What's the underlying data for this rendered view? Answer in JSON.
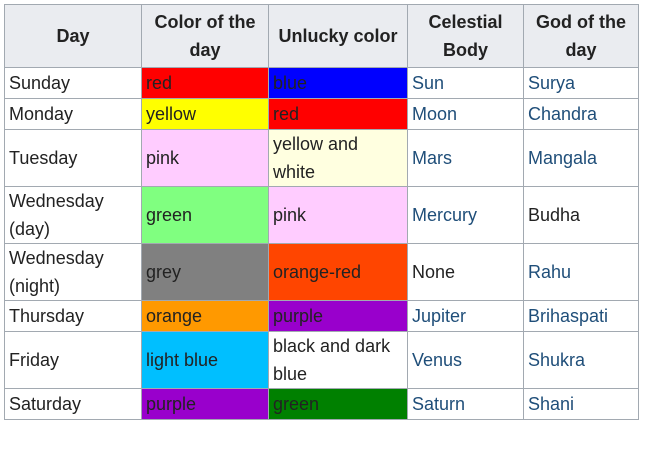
{
  "headers": [
    "Day",
    "Color of the day",
    "Unlucky color",
    "Celestial Body",
    "God of the day"
  ],
  "rows": [
    {
      "day": "Sunday",
      "color": "red",
      "color_bg": "#ff0000",
      "unlucky": "blue",
      "unlucky_bg": "#0000ff",
      "body": "Sun",
      "god": "Surya",
      "god_link": true,
      "body_link": true
    },
    {
      "day": "Monday",
      "color": "yellow",
      "color_bg": "#ffff00",
      "unlucky": "red",
      "unlucky_bg": "#ff0000",
      "body": "Moon",
      "god": "Chandra",
      "god_link": true,
      "body_link": true
    },
    {
      "day": "Tuesday",
      "color": "pink",
      "color_bg": "#ffccff",
      "unlucky": "yellow and white",
      "unlucky_bg": "#ffffe0",
      "body": "Mars",
      "god": "Mangala",
      "god_link": true,
      "body_link": true
    },
    {
      "day": "Wednesday (day)",
      "color": "green",
      "color_bg": "#80ff80",
      "unlucky": "pink",
      "unlucky_bg": "#ffccff",
      "body": "Mercury",
      "god": "Budha",
      "god_link": false,
      "body_link": true
    },
    {
      "day": "Wednesday (night)",
      "color": "grey",
      "color_bg": "#808080",
      "unlucky": "orange-red",
      "unlucky_bg": "#ff4500",
      "body": "None",
      "god": "Rahu",
      "god_link": true,
      "body_link": false
    },
    {
      "day": "Thursday",
      "color": "orange",
      "color_bg": "#ff9900",
      "unlucky": "purple",
      "unlucky_bg": "#9900cc",
      "body": "Jupiter",
      "god": "Brihaspati",
      "god_link": true,
      "body_link": true
    },
    {
      "day": "Friday",
      "color": "light blue",
      "color_bg": "#00bfff",
      "unlucky": "black and dark blue",
      "unlucky_bg": "#ffffff",
      "body": "Venus",
      "god": "Shukra",
      "god_link": true,
      "body_link": true
    },
    {
      "day": "Saturday",
      "color": "purple",
      "color_bg": "#9900cc",
      "unlucky": "green",
      "unlucky_bg": "#008000",
      "body": "Saturn",
      "god": "Shani",
      "god_link": true,
      "body_link": true
    }
  ]
}
